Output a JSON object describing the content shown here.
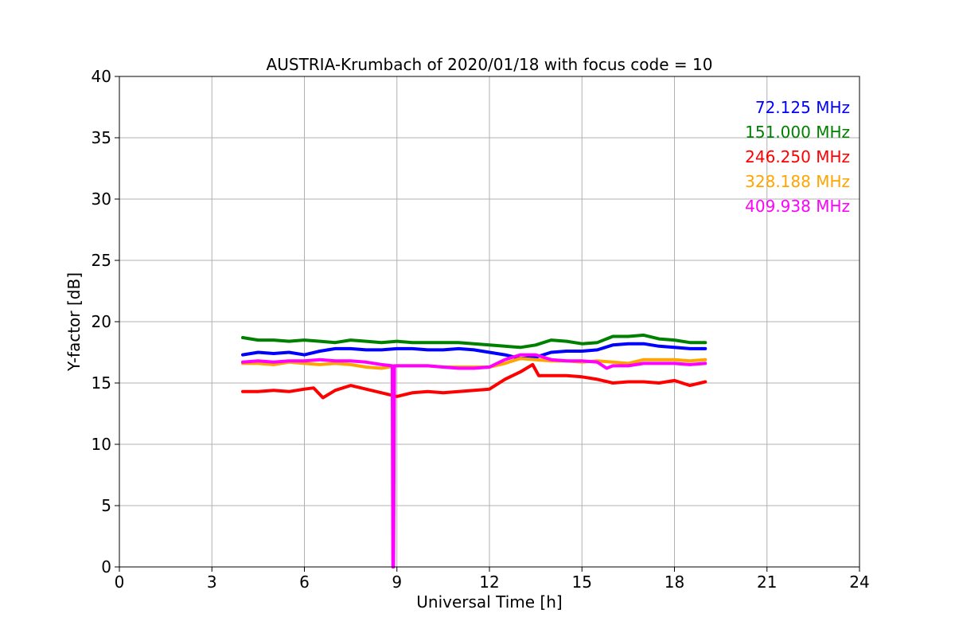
{
  "chart_data": {
    "type": "line",
    "title": "AUSTRIA-Krumbach of 2020/01/18 with focus code = 10",
    "xlabel": "Universal Time [h]",
    "ylabel": "Y-factor [dB]",
    "xlim": [
      0,
      24
    ],
    "ylim": [
      0,
      40
    ],
    "xticks": [
      0,
      3,
      6,
      9,
      12,
      15,
      18,
      21,
      24
    ],
    "yticks": [
      0,
      5,
      10,
      15,
      20,
      25,
      30,
      35,
      40
    ],
    "grid": true,
    "legend_position": "top-right",
    "series": [
      {
        "name": "72.125 MHz",
        "color": "#0000ff",
        "x": [
          4.0,
          4.5,
          5.0,
          5.5,
          6.0,
          6.5,
          7.0,
          7.5,
          8.0,
          8.5,
          9.0,
          9.5,
          10.0,
          10.5,
          11.0,
          11.5,
          12.0,
          12.5,
          13.0,
          13.5,
          14.0,
          14.5,
          15.0,
          15.5,
          16.0,
          16.5,
          17.0,
          17.5,
          18.0,
          18.5,
          19.0
        ],
        "y": [
          17.3,
          17.5,
          17.4,
          17.5,
          17.3,
          17.6,
          17.8,
          17.8,
          17.7,
          17.7,
          17.8,
          17.8,
          17.7,
          17.7,
          17.8,
          17.7,
          17.5,
          17.3,
          17.0,
          17.1,
          17.5,
          17.6,
          17.6,
          17.7,
          18.1,
          18.2,
          18.2,
          18.0,
          17.9,
          17.8,
          17.8
        ]
      },
      {
        "name": "151.000 MHz",
        "color": "#008000",
        "x": [
          4.0,
          4.5,
          5.0,
          5.5,
          6.0,
          6.5,
          7.0,
          7.5,
          8.0,
          8.5,
          9.0,
          9.5,
          10.0,
          10.5,
          11.0,
          11.5,
          12.0,
          12.5,
          13.0,
          13.5,
          14.0,
          14.5,
          15.0,
          15.5,
          16.0,
          16.5,
          17.0,
          17.5,
          18.0,
          18.5,
          19.0
        ],
        "y": [
          18.7,
          18.5,
          18.5,
          18.4,
          18.5,
          18.4,
          18.3,
          18.5,
          18.4,
          18.3,
          18.4,
          18.3,
          18.3,
          18.3,
          18.3,
          18.2,
          18.1,
          18.0,
          17.9,
          18.1,
          18.5,
          18.4,
          18.2,
          18.3,
          18.8,
          18.8,
          18.9,
          18.6,
          18.5,
          18.3,
          18.3
        ]
      },
      {
        "name": "246.250 MHz",
        "color": "#ff0000",
        "x": [
          4.0,
          4.5,
          5.0,
          5.5,
          6.0,
          6.3,
          6.6,
          7.0,
          7.5,
          8.0,
          8.5,
          9.0,
          9.5,
          10.0,
          10.5,
          11.0,
          11.5,
          12.0,
          12.5,
          13.0,
          13.4,
          13.6,
          14.0,
          14.5,
          15.0,
          15.5,
          16.0,
          16.5,
          17.0,
          17.5,
          18.0,
          18.5,
          19.0
        ],
        "y": [
          14.3,
          14.3,
          14.4,
          14.3,
          14.5,
          14.6,
          13.8,
          14.4,
          14.8,
          14.5,
          14.2,
          13.9,
          14.2,
          14.3,
          14.2,
          14.3,
          14.4,
          14.5,
          15.3,
          15.9,
          16.5,
          15.6,
          15.6,
          15.6,
          15.5,
          15.3,
          15.0,
          15.1,
          15.1,
          15.0,
          15.2,
          14.8,
          15.1
        ]
      },
      {
        "name": "328.188 MHz",
        "color": "#ffa500",
        "x": [
          4.0,
          4.5,
          5.0,
          5.5,
          6.0,
          6.5,
          7.0,
          7.5,
          8.0,
          8.5,
          9.0,
          9.5,
          10.0,
          10.5,
          11.0,
          11.5,
          12.0,
          12.5,
          13.0,
          13.5,
          14.0,
          14.5,
          15.0,
          15.5,
          16.0,
          16.5,
          17.0,
          17.5,
          18.0,
          18.5,
          19.0
        ],
        "y": [
          16.6,
          16.6,
          16.5,
          16.7,
          16.6,
          16.5,
          16.6,
          16.5,
          16.3,
          16.2,
          16.4,
          16.4,
          16.4,
          16.3,
          16.3,
          16.3,
          16.3,
          16.6,
          17.0,
          16.9,
          16.8,
          16.8,
          16.7,
          16.8,
          16.7,
          16.6,
          16.9,
          16.9,
          16.9,
          16.8,
          16.9
        ]
      },
      {
        "name": "409.938 MHz",
        "color": "#ff00ff",
        "x": [
          4.0,
          4.5,
          5.0,
          5.5,
          6.0,
          6.5,
          7.0,
          7.5,
          8.0,
          8.5,
          8.85,
          8.87,
          8.89,
          8.92,
          9.0,
          9.5,
          10.0,
          10.5,
          11.0,
          11.5,
          12.0,
          12.5,
          13.0,
          13.5,
          14.0,
          14.5,
          15.0,
          15.5,
          15.8,
          16.0,
          16.5,
          17.0,
          17.5,
          18.0,
          18.5,
          19.0
        ],
        "y": [
          16.7,
          16.8,
          16.7,
          16.8,
          16.8,
          16.9,
          16.8,
          16.8,
          16.7,
          16.5,
          16.4,
          0.0,
          0.0,
          16.4,
          16.4,
          16.4,
          16.4,
          16.3,
          16.2,
          16.2,
          16.3,
          16.9,
          17.3,
          17.3,
          16.9,
          16.8,
          16.8,
          16.7,
          16.2,
          16.4,
          16.4,
          16.6,
          16.6,
          16.6,
          16.5,
          16.6
        ]
      }
    ]
  }
}
